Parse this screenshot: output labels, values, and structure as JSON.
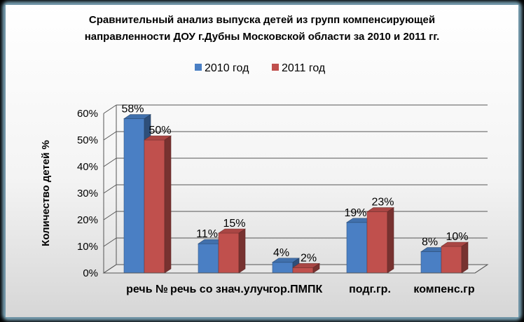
{
  "colors": {
    "frame_outer": "#000000",
    "frame_glow": "#9fd4ec",
    "panel_top": "#ffffff",
    "panel_bottom": "#d6d6d6",
    "series_2010": "#4a7fc4",
    "series_2011": "#c0504d"
  },
  "chart_data": {
    "type": "bar",
    "title": "Сравнительный анализ выпуска детей из групп компенсирующей направленности ДОУ г.Дубны Московской области за 2010 и 2011 гг.",
    "title_lines": [
      "Сравнительный анализ выпуска детей из групп компенсирующей",
      "направленности ДОУ г.Дубны Московской области за 2010 и 2011 гг."
    ],
    "ylabel": "Количество детей %",
    "xlabel": "",
    "ylim": [
      0,
      60
    ],
    "yticks": [
      "0%",
      "10%",
      "20%",
      "30%",
      "40%",
      "50%",
      "60%"
    ],
    "grid": true,
    "legend_position": "top",
    "categories": [
      "речь №",
      "речь со знач.улуч.",
      "гор.ПМПК",
      "подг.гр.",
      "компенс.гр"
    ],
    "series": [
      {
        "name": "2010 год",
        "values": [
          58,
          11,
          4,
          19,
          8
        ],
        "labels": [
          "58%",
          "11%",
          "4%",
          "19%",
          "8%"
        ]
      },
      {
        "name": "2011 год",
        "values": [
          50,
          15,
          2,
          23,
          10
        ],
        "labels": [
          "50%",
          "15%",
          "2%",
          "23%",
          "10%"
        ]
      }
    ]
  }
}
